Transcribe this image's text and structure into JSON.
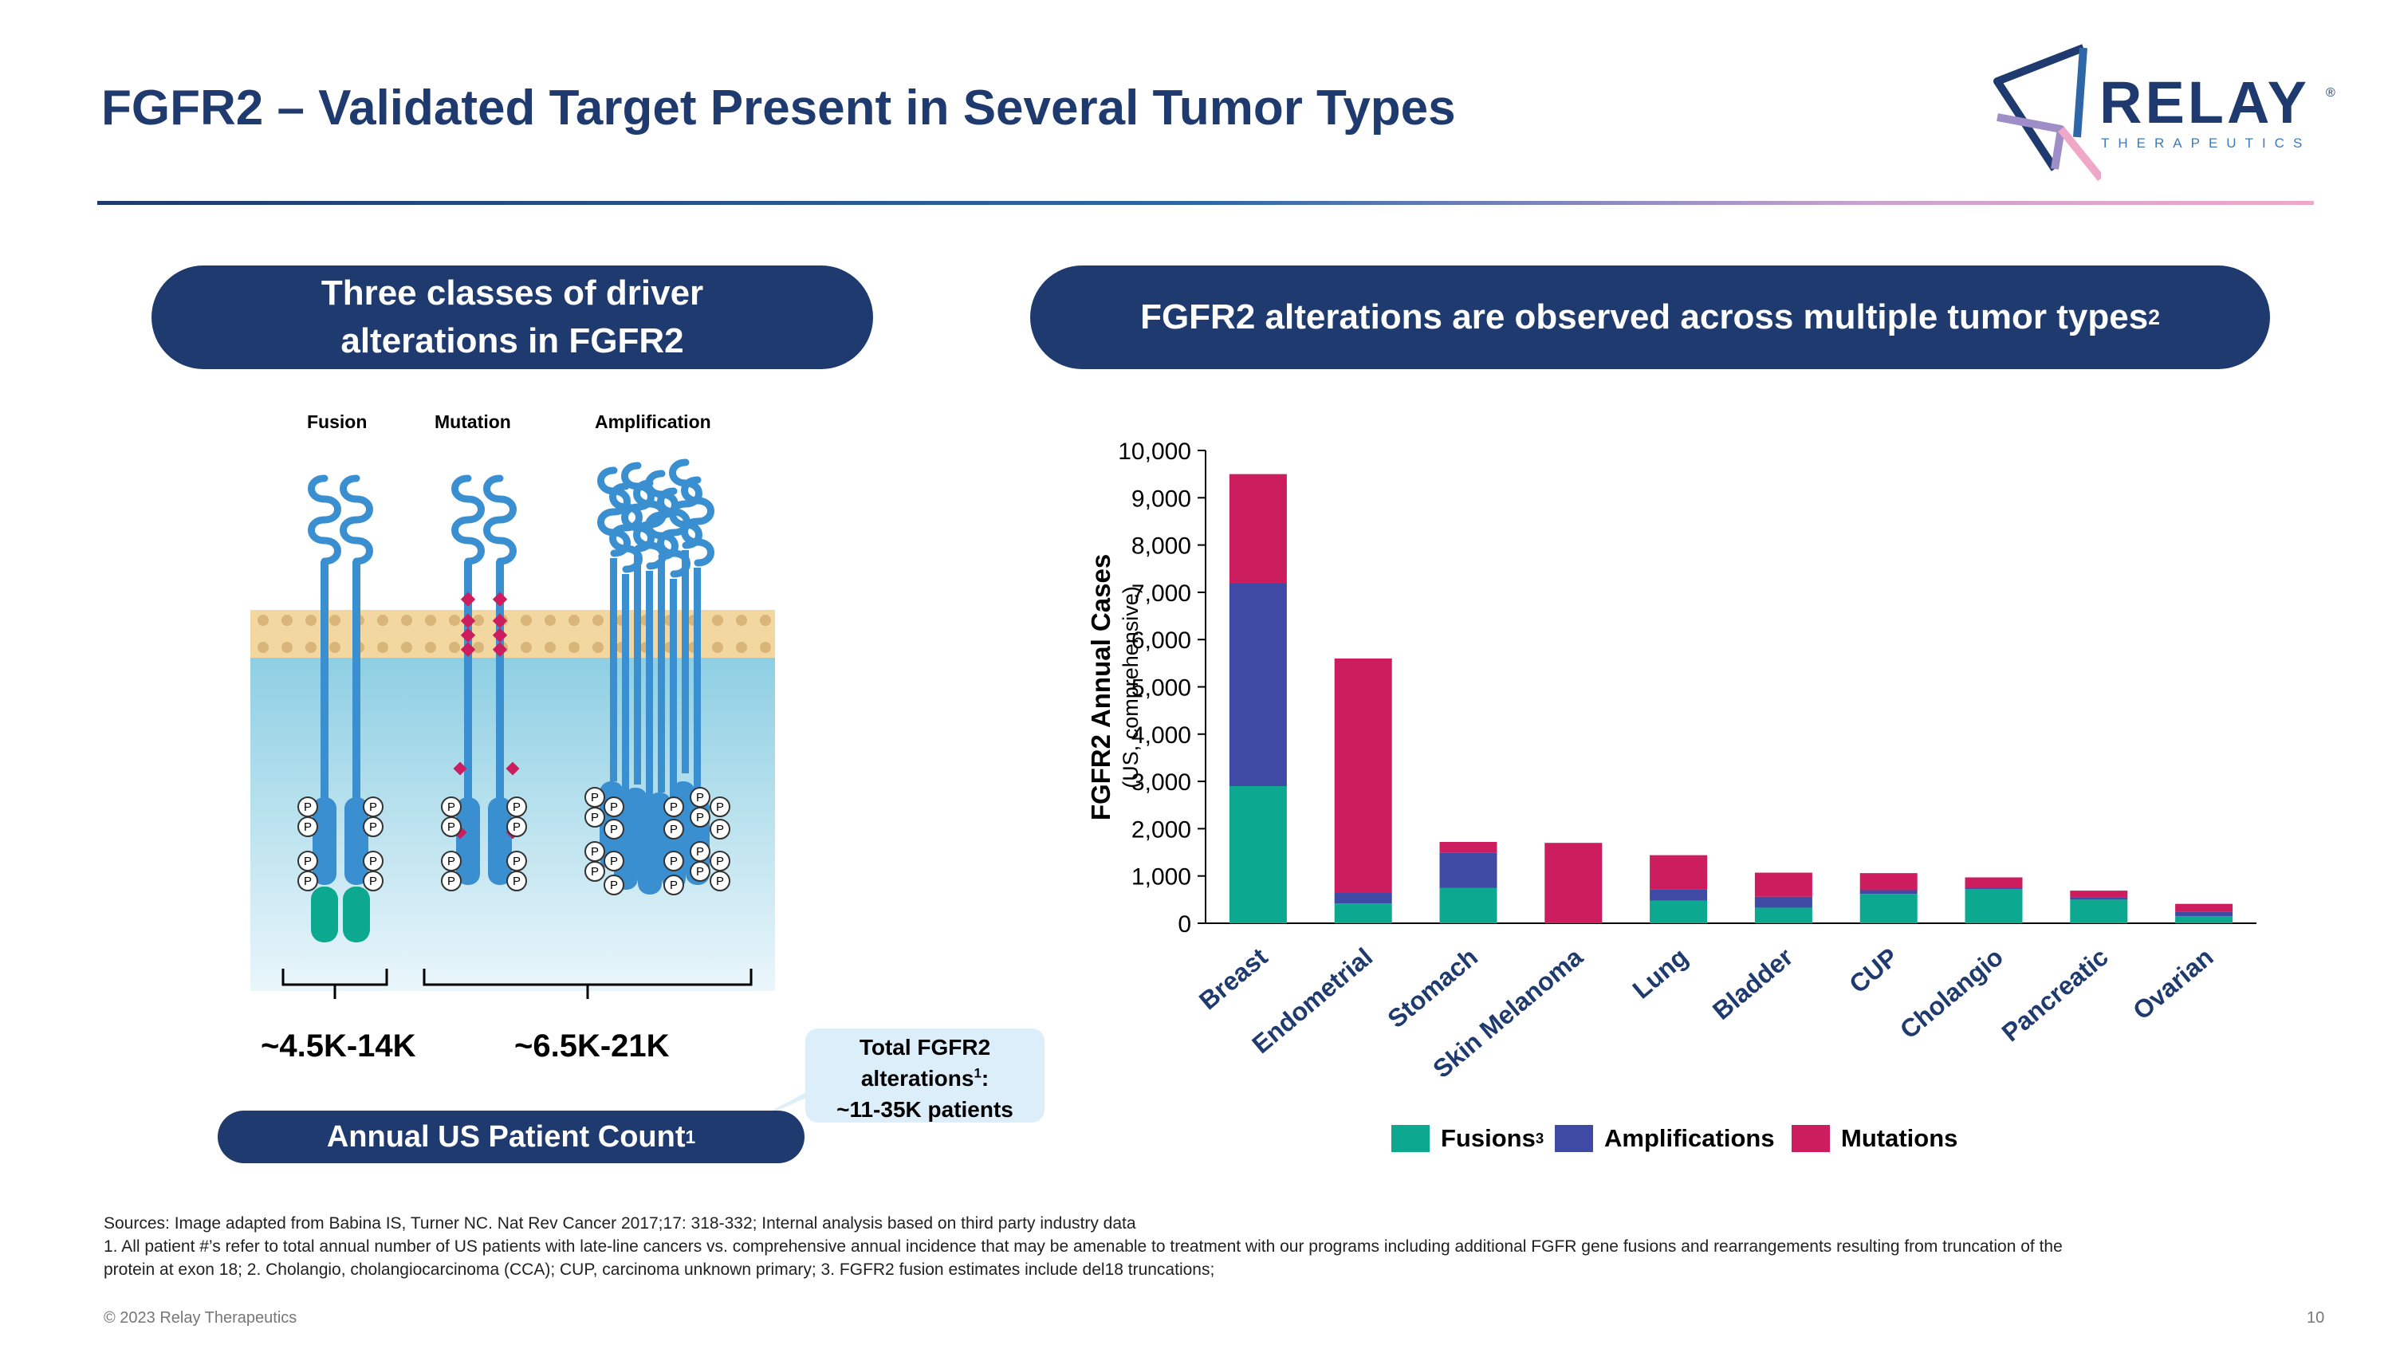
{
  "slide": {
    "title": "FGFR2 – Validated Target Present in Several Tumor Types",
    "page_number": "10",
    "copyright": "© 2023 Relay Therapeutics"
  },
  "logo": {
    "wordmark": "RELAY",
    "registered": "®",
    "tagline": "THERAPEUTICS"
  },
  "left_panel": {
    "header_line1": "Three classes of driver",
    "header_line2": "alterations in FGFR2",
    "labels": {
      "fusion": "Fusion",
      "mutation": "Mutation",
      "amplification": "Amplification"
    },
    "fusion_range": "~4.5K-14K",
    "mutation_amp_range": "~6.5K-21K",
    "patient_count_label": "Annual US Patient Count",
    "patient_count_sup": "1",
    "callout_line1": "Total FGFR2",
    "callout_line2_text": "alterations",
    "callout_line2_sup": "1",
    "callout_line2_colon": ":",
    "callout_line3": "~11-35K patients",
    "phospho_label": "P"
  },
  "right_panel": {
    "header": "FGFR2 alterations are observed across multiple tumor types",
    "header_sup": "2"
  },
  "legend": {
    "fusions": "Fusions",
    "fusions_sup": "3",
    "amplifications": "Amplifications",
    "mutations": "Mutations"
  },
  "colors": {
    "navy": "#1f3a6e",
    "fusions": "#0ca88f",
    "amplifications": "#3e4aa3",
    "mutations": "#cc1e5e",
    "receptor": "#3a8fd0",
    "membrane": "#f2d7a0",
    "callout": "#dbeef9"
  },
  "chart_data": {
    "type": "bar",
    "stacked": true,
    "title": "FGFR2 alterations are observed across multiple tumor types",
    "ylabel": "FGFR2 Annual Cases",
    "ylabel_sub": "(US, comprehensive)",
    "xlabel": "",
    "ylim": [
      0,
      10000
    ],
    "yticks": [
      "0",
      "1,000",
      "2,000",
      "3,000",
      "4,000",
      "5,000",
      "6,000",
      "7,000",
      "8,000",
      "9,000",
      "10,000"
    ],
    "categories": [
      "Breast",
      "Endometrial",
      "Stomach",
      "Skin Melanoma",
      "Lung",
      "Bladder",
      "CUP",
      "Cholangio",
      "Pancreatic",
      "Ovarian"
    ],
    "series": [
      {
        "name": "Fusions",
        "color": "#0ca88f",
        "values": [
          2900,
          420,
          750,
          0,
          480,
          330,
          620,
          720,
          500,
          150
        ]
      },
      {
        "name": "Amplifications",
        "color": "#3e4aa3",
        "values": [
          4300,
          230,
          740,
          0,
          240,
          230,
          80,
          30,
          50,
          100
        ]
      },
      {
        "name": "Mutations",
        "color": "#cc1e5e",
        "values": [
          2300,
          4950,
          230,
          1700,
          720,
          510,
          360,
          220,
          140,
          160
        ]
      }
    ]
  },
  "footnotes": {
    "sources": "Sources: Image adapted from Babina IS, Turner NC. Nat Rev Cancer 2017;17: 318-332; Internal analysis based on third party industry data",
    "note1_line1": "1. All patient #’s refer to total annual number of US patients with late-line cancers vs. comprehensive annual incidence that may be amenable to treatment with our programs including additional FGFR gene fusions and rearrangements resulting from truncation of the",
    "note1_line2": "protein at exon 18;  2. Cholangio, cholangiocarcinoma (CCA); CUP, carcinoma unknown primary;  3. FGFR2 fusion estimates include del18 truncations;"
  }
}
